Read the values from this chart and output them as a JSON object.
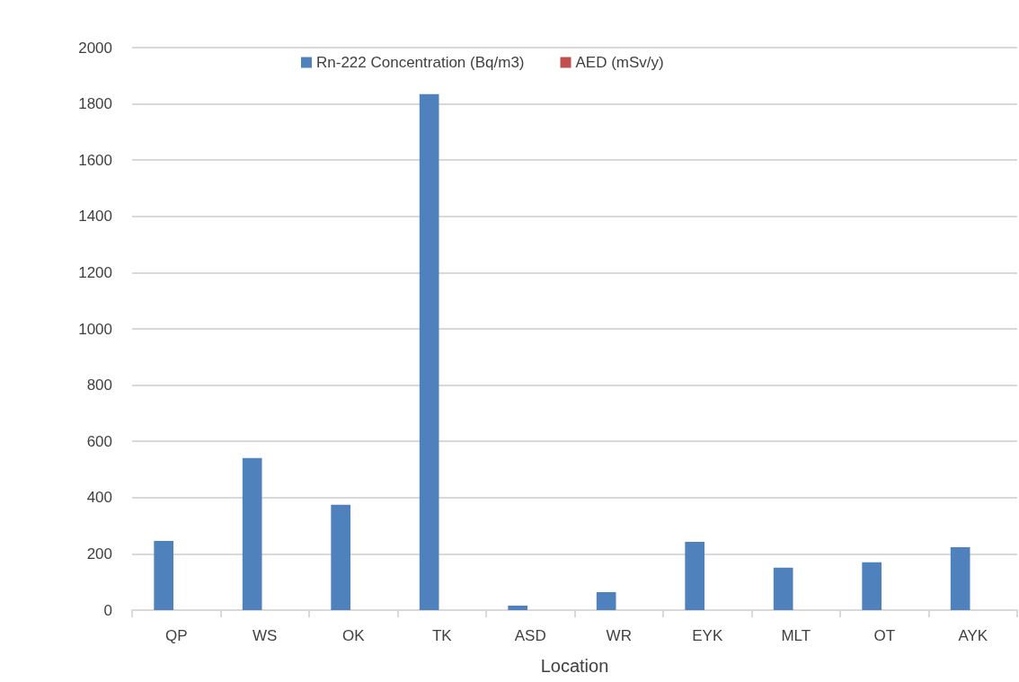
{
  "chart_data": {
    "type": "bar",
    "xlabel": "Location",
    "categories": [
      "QP",
      "WS",
      "OK",
      "TK",
      "ASD",
      "WR",
      "EYK",
      "MLT",
      "OT",
      "AYK"
    ],
    "series": [
      {
        "name": "Rn-222 Concentration (Bq/m3)",
        "color": "#4f81bd",
        "values": [
          246,
          541,
          375,
          1835,
          16,
          64,
          243,
          151,
          170,
          224
        ]
      },
      {
        "name": "AED (mSv/y)",
        "color": "#c0504d",
        "values": [
          null,
          null,
          null,
          null,
          null,
          null,
          null,
          null,
          null,
          null
        ]
      }
    ],
    "ylim": [
      0,
      2000
    ],
    "yticks": [
      0,
      200,
      400,
      600,
      800,
      1000,
      1200,
      1400,
      1600,
      1800,
      2000
    ],
    "grid": "y",
    "legend": "top"
  }
}
